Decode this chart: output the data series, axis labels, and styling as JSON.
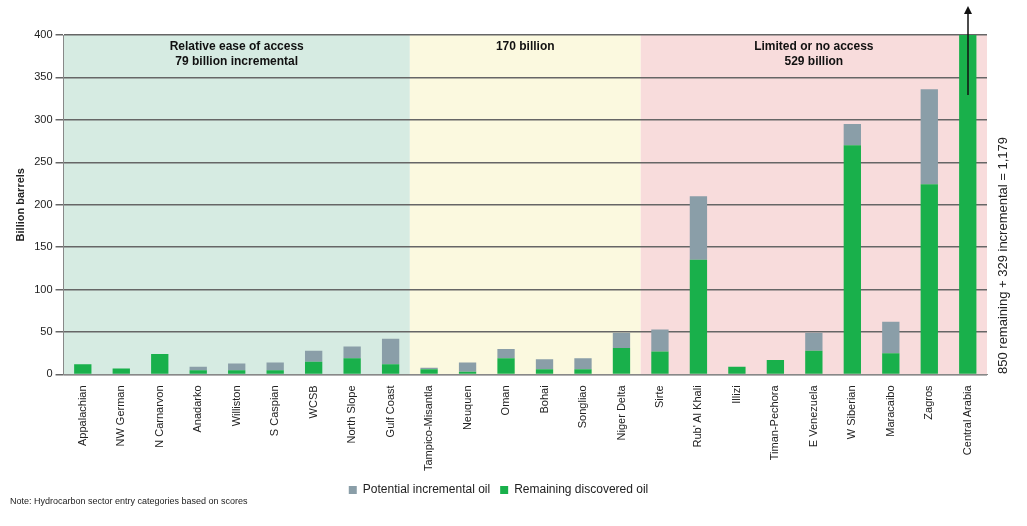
{
  "chart_data": {
    "type": "bar",
    "ylabel": "Billion barrels",
    "categories": [
      "Appalachian",
      "NW German",
      "N Carnarvon",
      "Anadarko",
      "Williston",
      "S Caspian",
      "WCSB",
      "North Slope",
      "Gulf Coast",
      "Tampico-Misantla",
      "Neuquen",
      "Oman",
      "Bohai",
      "Songliao",
      "Niger Delta",
      "Sirte",
      "Rub' Al Khali",
      "Illizi",
      "Timan-Pechora",
      "E Venezuela",
      "W Siberian",
      "Maracaibo",
      "Zagros",
      "Central Arabia"
    ],
    "series": [
      {
        "name": "Remaining discovered oil",
        "color": "#19b04b",
        "values": [
          12,
          7,
          24,
          5,
          5,
          5,
          15,
          19,
          12,
          6,
          3,
          19,
          6,
          6,
          31,
          27,
          135,
          9,
          17,
          28,
          270,
          25,
          224,
          400
        ]
      },
      {
        "name": "Potential incremental oil",
        "color": "#8a9ea8",
        "values": [
          0,
          0,
          0,
          4,
          8,
          9,
          13,
          14,
          30,
          2,
          11,
          11,
          12,
          13,
          18,
          26,
          75,
          0,
          0,
          21,
          25,
          37,
          112,
          0
        ]
      }
    ],
    "stacked": true,
    "ylim": [
      0,
      400
    ],
    "yticks": [
      0,
      50,
      100,
      150,
      200,
      250,
      300,
      350,
      400
    ],
    "grid": "y",
    "legend": "bottom",
    "bands": [
      {
        "axis": "x",
        "from": "Appalachian",
        "to": "Gulf Coast",
        "label": "Relative ease of access\n79 billion incremental",
        "color": "#d6ebe2"
      },
      {
        "axis": "x",
        "from": "Tampico-Misantla",
        "to": "Niger Delta",
        "label": "170 billion",
        "color": "#fbf9df"
      },
      {
        "axis": "x",
        "from": "Sirte",
        "to": "Central Arabia",
        "label": "Limited or no access\n529 billion",
        "color": "#f8dcdc"
      }
    ],
    "annotations": [
      "850 remaining + 329 incremental = 1,179",
      "Note: Hydrocarbon sector entry categories based on scores"
    ]
  }
}
